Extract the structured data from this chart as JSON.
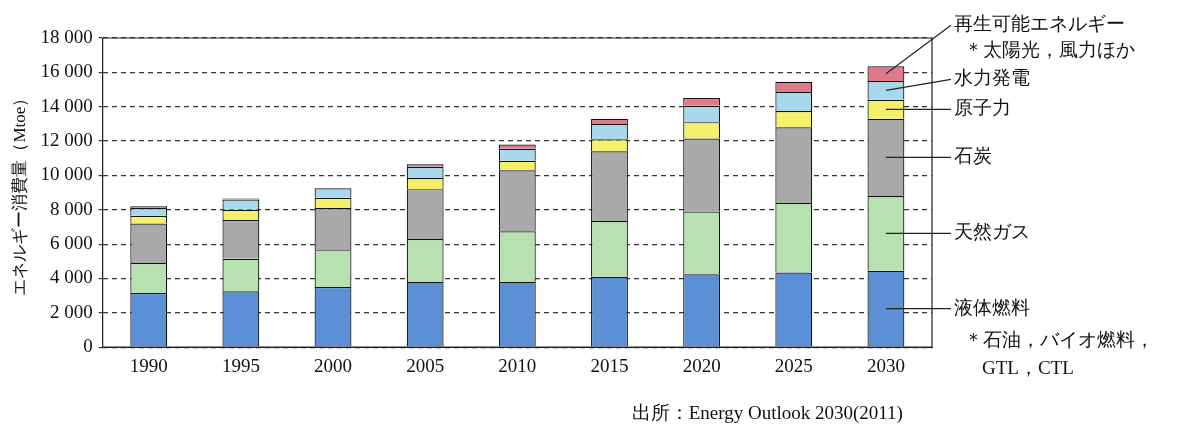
{
  "chart_data": {
    "type": "bar",
    "stacked": true,
    "ylabel": "エネルギー消費量（Mtoe）",
    "categories": [
      "1990",
      "1995",
      "2000",
      "2005",
      "2010",
      "2015",
      "2020",
      "2025",
      "2030"
    ],
    "series": [
      {
        "name": "液体燃料",
        "color": "#5b8fd6",
        "values": [
          3150,
          3250,
          3500,
          3800,
          3800,
          4100,
          4250,
          4350,
          4450
        ]
      },
      {
        "name": "天然ガス",
        "color": "#b8e0b0",
        "values": [
          1750,
          1900,
          2150,
          2500,
          2950,
          3250,
          3650,
          4050,
          4350
        ]
      },
      {
        "name": "石炭",
        "color": "#a9a9a9",
        "values": [
          2300,
          2250,
          2450,
          2900,
          3550,
          4050,
          4250,
          4400,
          4500
        ]
      },
      {
        "name": "原子力",
        "color": "#f5f06a",
        "values": [
          450,
          600,
          600,
          650,
          550,
          700,
          950,
          950,
          1100
        ]
      },
      {
        "name": "水力発電",
        "color": "#a8d8ec",
        "values": [
          450,
          600,
          550,
          650,
          700,
          900,
          950,
          1100,
          1100
        ]
      },
      {
        "name": "再生可能エネルギー",
        "color": "#e07a8a",
        "values": [
          100,
          50,
          null,
          150,
          250,
          300,
          450,
          600,
          850
        ]
      }
    ],
    "ylim": [
      0,
      18000
    ],
    "yticks": [
      0,
      {
        "value": 2000,
        "label": "2 000"
      },
      {
        "value": 4000,
        "label": "4 000"
      },
      {
        "value": 6000,
        "label": "6 000"
      },
      {
        "value": 8000,
        "label": "8 000"
      },
      {
        "value": 10000,
        "label": "10 000"
      },
      {
        "value": 12000,
        "label": "12 000"
      },
      {
        "value": 14000,
        "label": "14 000"
      },
      {
        "value": 16000,
        "label": "16 000"
      },
      {
        "value": 18000,
        "label": "18 000"
      }
    ],
    "grid": "y",
    "legend": false,
    "annotations": [
      "＊太陽光，風力ほか",
      "＊石油，バイオ燃料，GTL，CTL",
      "出所：Energy Outlook 2030(2011)"
    ]
  }
}
